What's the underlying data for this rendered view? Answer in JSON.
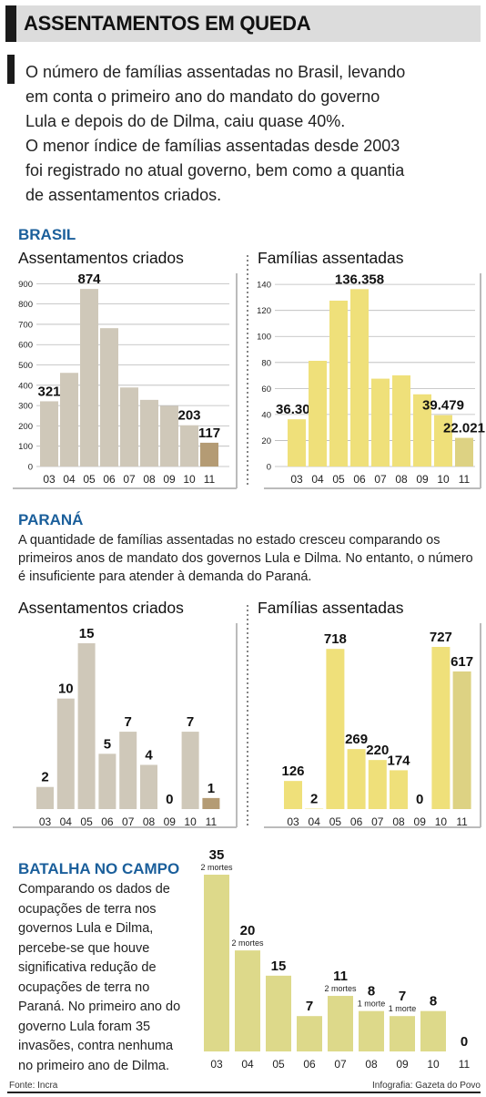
{
  "header": {
    "title": "ASSENTAMENTOS EM QUEDA",
    "intro_lines": [
      "O número de famílias assentadas no Brasil, levando",
      "em conta o primeiro ano do mandato do governo",
      "Lula e depois do de Dilma, caiu quase 40%.",
      "O menor índice de famílias assentadas desde 2003",
      "foi registrado no atual governo, bem como a quantia",
      "de assentamentos criados."
    ]
  },
  "brasil": {
    "section_title": "BRASIL",
    "assentamentos_subtitle": "Assentamentos criados",
    "familias_subtitle": "Famílias assentadas"
  },
  "parana": {
    "section_title": "PARANÁ",
    "description_lines": [
      "A quantidade de famílias assentadas no estado cresceu comparando os",
      "primeiros anos de mandato dos governos Lula e Dilma. No entanto, o número",
      "é insuficiente para atender à demanda do Paraná."
    ],
    "assentamentos_subtitle": "Assentamentos criados",
    "familias_subtitle": "Famílias assentadas"
  },
  "batalha": {
    "section_title": "BATALHA NO CAMPO",
    "description_lines": [
      "Comparando os dados de",
      "ocupações de terra nos",
      "governos Lula e Dilma,",
      "percebe-se que houve",
      "significativa redução de",
      "ocupações de terra no",
      "Paraná. No primeiro ano do",
      "governo Lula foram 35",
      "invasões, contra nenhuma",
      "no primeiro ano de Dilma."
    ]
  },
  "footer": {
    "source": "Fonte: Incra",
    "credit": "Infografia: Gazeta do Povo"
  },
  "colors": {
    "gray_bar": "#cfc8b9",
    "gray_highlight": "#b49b74",
    "yellow_bar": "#efe07a",
    "yellow_highlight": "#ddd283",
    "olive_bar": "#ddd98a",
    "section_blue": "#1b5f9b",
    "grid": "#b8b8b8"
  },
  "chart_data": [
    {
      "id": "brasil-assentamentos",
      "type": "bar",
      "categories": [
        "03",
        "04",
        "05",
        "06",
        "07",
        "08",
        "09",
        "10",
        "11"
      ],
      "values": [
        321,
        461,
        874,
        681,
        389,
        328,
        298,
        203,
        117
      ],
      "value_labels": [
        "321",
        "",
        "874",
        "",
        "",
        "",
        "",
        "203",
        "117"
      ],
      "yticks": [
        0,
        100,
        200,
        300,
        400,
        500,
        600,
        700,
        800,
        900
      ],
      "ylim": [
        0,
        950
      ],
      "grid": true,
      "highlight_index": 8
    },
    {
      "id": "brasil-familias",
      "type": "bar",
      "categories": [
        "03",
        "04",
        "05",
        "06",
        "07",
        "08",
        "09",
        "10",
        "11"
      ],
      "values": [
        36.301,
        81.254,
        127.506,
        136.358,
        67.535,
        70.067,
        55.498,
        39.479,
        22.021
      ],
      "value_labels": [
        "36.301",
        "",
        "",
        "136.358",
        "",
        "",
        "",
        "39.479",
        "22.021"
      ],
      "yticks": [
        0,
        20,
        40,
        60,
        80,
        100,
        120,
        140
      ],
      "ylim": [
        0,
        145
      ],
      "grid": true,
      "highlight_index": 8
    },
    {
      "id": "parana-assentamentos",
      "type": "bar",
      "categories": [
        "03",
        "04",
        "05",
        "06",
        "07",
        "08",
        "09",
        "10",
        "11"
      ],
      "values": [
        2,
        10,
        15,
        5,
        7,
        4,
        0,
        7,
        1
      ],
      "value_labels": [
        "2",
        "10",
        "15",
        "5",
        "7",
        "4",
        "0",
        "7",
        "1"
      ],
      "ylim": [
        0,
        15
      ],
      "grid": false,
      "highlight_index": 8
    },
    {
      "id": "parana-familias",
      "type": "bar",
      "categories": [
        "03",
        "04",
        "05",
        "06",
        "07",
        "08",
        "09",
        "10",
        "11"
      ],
      "values": [
        126,
        2,
        718,
        269,
        220,
        174,
        0,
        727,
        617
      ],
      "value_labels": [
        "126",
        "2",
        "718",
        "269",
        "220",
        "174",
        "0",
        "727",
        "617"
      ],
      "ylim": [
        0,
        727
      ],
      "grid": false,
      "highlight_index": 8
    },
    {
      "id": "batalha-ocupacoes",
      "type": "bar",
      "categories": [
        "03",
        "04",
        "05",
        "06",
        "07",
        "08",
        "09",
        "10",
        "11"
      ],
      "values": [
        35,
        20,
        15,
        7,
        11,
        8,
        7,
        8,
        0
      ],
      "value_labels": [
        "35",
        "20",
        "15",
        "7",
        "11",
        "8",
        "7",
        "8",
        "0"
      ],
      "deaths_labels": [
        "2 mortes",
        "2 mortes",
        "",
        "",
        "2 mortes",
        "1 morte",
        "1 morte",
        "",
        ""
      ],
      "ylim": [
        0,
        35
      ],
      "grid": false
    }
  ]
}
